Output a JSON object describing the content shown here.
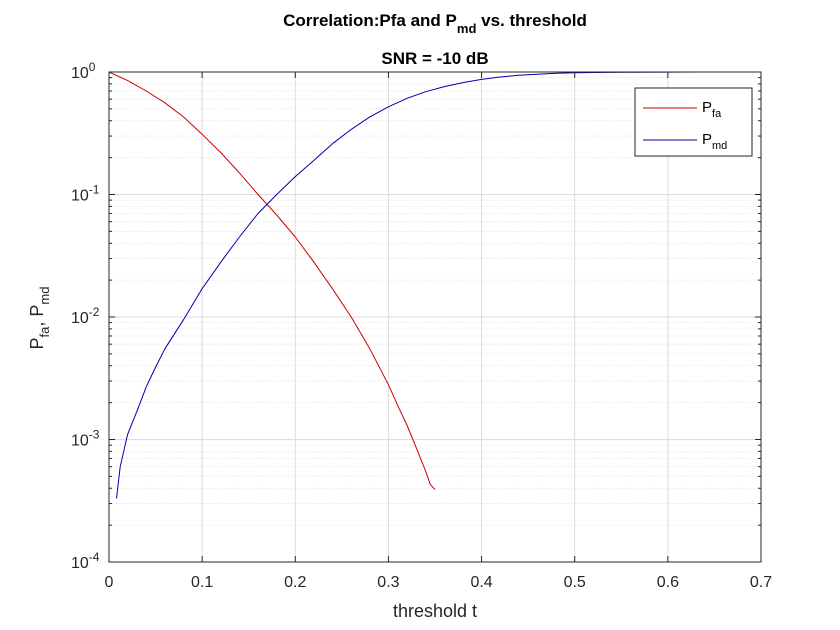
{
  "chart_data": {
    "type": "line",
    "title_main": "Correlation:Pfa and P",
    "title_sub": "md",
    "title_rest": " vs. threshold",
    "subtitle": "SNR = -10 dB",
    "xlabel": "threshold t",
    "ylabel_p1": "P",
    "ylabel_s1": "fa",
    "ylabel_sep": ", P",
    "ylabel_s2": "md",
    "xlim": [
      0,
      0.7
    ],
    "ylim": [
      0.0001,
      1
    ],
    "yscale": "log",
    "grid": true,
    "legend_position": "top-right",
    "x_ticks": [
      {
        "value": 0,
        "label": "0"
      },
      {
        "value": 0.1,
        "label": "0.1"
      },
      {
        "value": 0.2,
        "label": "0.2"
      },
      {
        "value": 0.3,
        "label": "0.3"
      },
      {
        "value": 0.4,
        "label": "0.4"
      },
      {
        "value": 0.5,
        "label": "0.5"
      },
      {
        "value": 0.6,
        "label": "0.6"
      },
      {
        "value": 0.7,
        "label": "0.7"
      }
    ],
    "y_ticks": [
      {
        "value": 1,
        "base": "10",
        "exp": "0"
      },
      {
        "value": 0.1,
        "base": "10",
        "exp": "-1"
      },
      {
        "value": 0.01,
        "base": "10",
        "exp": "-2"
      },
      {
        "value": 0.001,
        "base": "10",
        "exp": "-3"
      },
      {
        "value": 0.0001,
        "base": "10",
        "exp": "-4"
      }
    ],
    "series": [
      {
        "name": "P",
        "name_sub": "fa",
        "color": "#cc0000",
        "x": [
          0,
          0.02,
          0.04,
          0.06,
          0.08,
          0.1,
          0.12,
          0.14,
          0.16,
          0.18,
          0.2,
          0.22,
          0.24,
          0.26,
          0.28,
          0.3,
          0.31,
          0.32,
          0.33,
          0.34,
          0.345,
          0.35
        ],
        "y": [
          1.0,
          0.85,
          0.7,
          0.56,
          0.43,
          0.31,
          0.22,
          0.15,
          0.1,
          0.068,
          0.045,
          0.028,
          0.017,
          0.01,
          0.0055,
          0.0028,
          0.0019,
          0.0013,
          0.00085,
          0.00055,
          0.00043,
          0.00039
        ]
      },
      {
        "name": "P",
        "name_sub": "md",
        "color": "#0000aa",
        "x": [
          0.008,
          0.012,
          0.02,
          0.03,
          0.04,
          0.05,
          0.06,
          0.08,
          0.1,
          0.12,
          0.14,
          0.16,
          0.18,
          0.2,
          0.22,
          0.24,
          0.26,
          0.28,
          0.3,
          0.32,
          0.34,
          0.36,
          0.38,
          0.4,
          0.42,
          0.44,
          0.46,
          0.48,
          0.5,
          0.52,
          0.55,
          0.6,
          0.633
        ],
        "y": [
          0.00033,
          0.0006,
          0.0011,
          0.0017,
          0.0027,
          0.0039,
          0.0055,
          0.0095,
          0.017,
          0.028,
          0.045,
          0.07,
          0.1,
          0.14,
          0.19,
          0.26,
          0.34,
          0.43,
          0.52,
          0.61,
          0.69,
          0.76,
          0.82,
          0.87,
          0.91,
          0.94,
          0.96,
          0.975,
          0.985,
          0.99,
          0.995,
          0.998,
          1.0
        ]
      }
    ]
  }
}
